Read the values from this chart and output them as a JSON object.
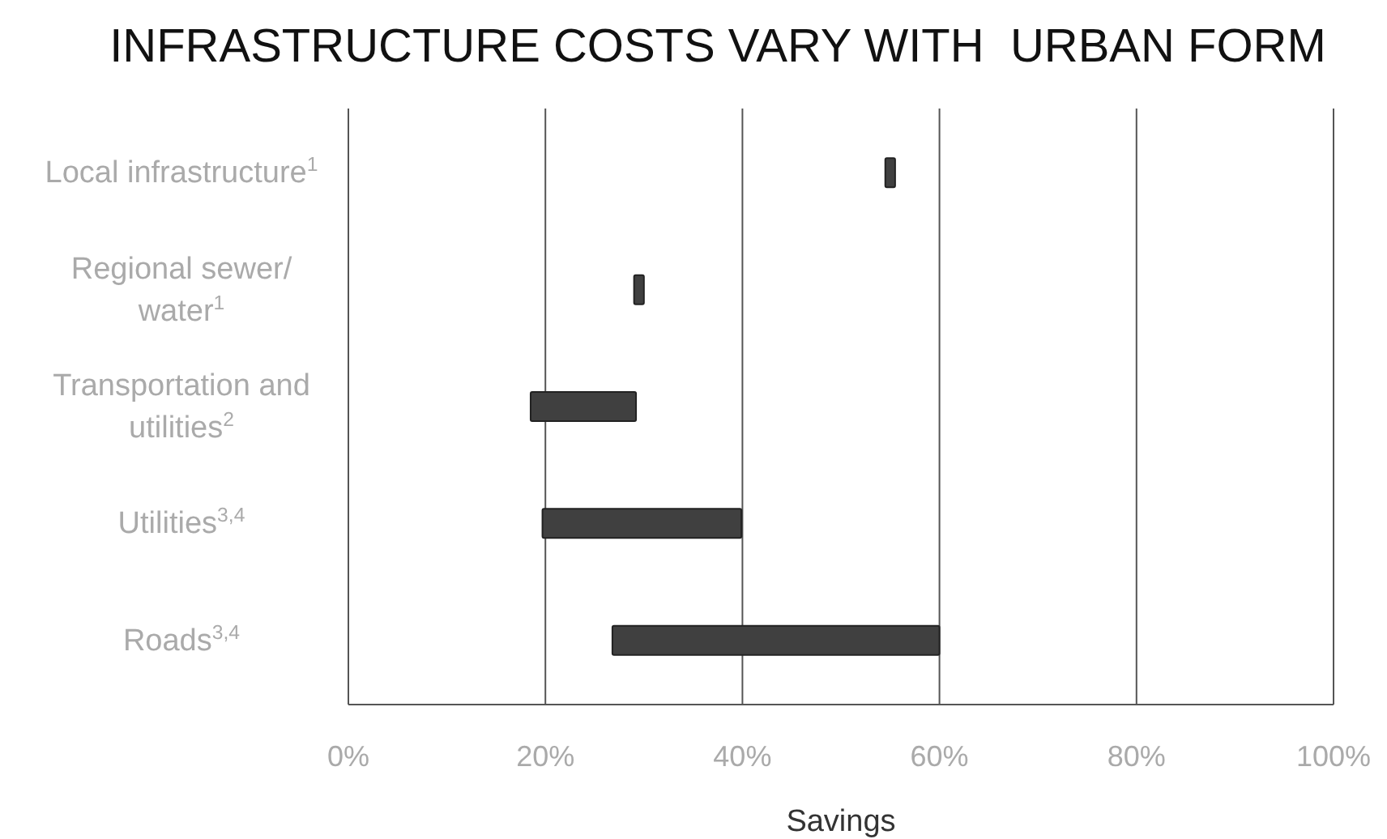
{
  "chart_data": {
    "type": "bar",
    "orientation": "horizontal",
    "title": "INFRASTRUCTURE COSTS VARY WITH  URBAN FORM",
    "xlabel": "Savings",
    "categories": [
      "Local infrastructure$^{1}$",
      "Regional sewer/ water$^{1}$",
      "Transportation and utilities$^{2}$",
      "Utilities$^{3,4}$",
      "Roads$^{3,4}$"
    ],
    "base": [
      54.5,
      29,
      18.5,
      19.7,
      26.8
    ],
    "values": [
      1,
      1,
      10.7,
      20.2,
      33.2
    ],
    "color": "#404040",
    "xlim": [
      0,
      100
    ],
    "xticks": [
      {
        "value": 0,
        "label": "0%"
      },
      {
        "value": 20,
        "label": "20%"
      },
      {
        "value": 40,
        "label": "40%"
      },
      {
        "value": 60,
        "label": "60%"
      },
      {
        "value": 80,
        "label": "80%"
      },
      {
        "value": 100,
        "label": "100%"
      }
    ],
    "grid": "x"
  }
}
